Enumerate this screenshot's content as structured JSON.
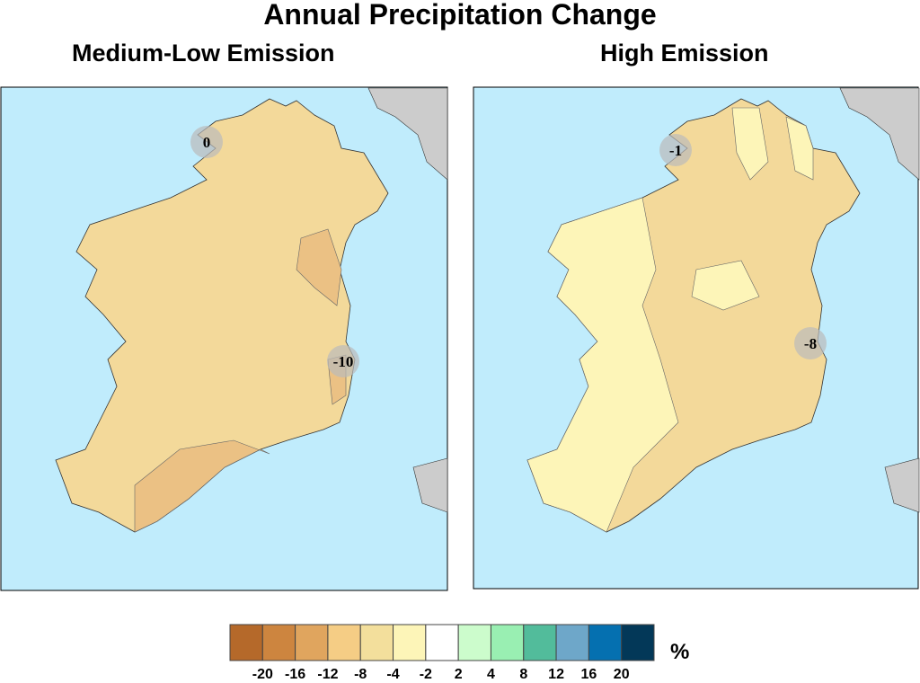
{
  "title": "Annual Precipitation Change",
  "panels": [
    {
      "subtitle": "Medium-Low Emission",
      "labels": [
        {
          "value": "0"
        },
        {
          "value": "-10"
        }
      ]
    },
    {
      "subtitle": "High Emission",
      "labels": [
        {
          "value": "-1"
        },
        {
          "value": "-8"
        }
      ]
    }
  ],
  "colorbar": {
    "unit": "%",
    "ticks": [
      "-20",
      "-16",
      "-12",
      "-8",
      "-4",
      "-2",
      "2",
      "4",
      "8",
      "12",
      "16",
      "20"
    ],
    "colors": [
      "#b5692a",
      "#cd853f",
      "#e0a55e",
      "#f5cd85",
      "#f3df9c",
      "#fdf5b8",
      "#ffffff",
      "#ccfccc",
      "#99efb2",
      "#52bc9b",
      "#6ea7c9",
      "#0570b0",
      "#033858"
    ]
  },
  "colors": {
    "sea": "#c0ecfc",
    "other_land": "#cccccc"
  }
}
